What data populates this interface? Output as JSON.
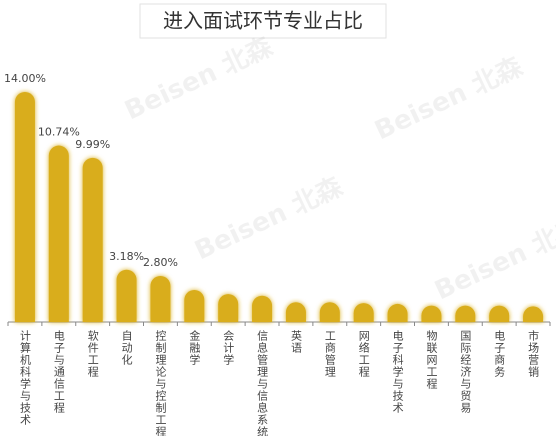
{
  "chart_data": {
    "type": "bar",
    "title": "进入面试环节专业占比",
    "watermark": "Beisen 北森",
    "categories": [
      "计算机科学与技术",
      "电子与通信工程",
      "软件工程",
      "自动化",
      "控制理论与控制工程",
      "金融学",
      "会计学",
      "信息管理与信息系统",
      "英语",
      "工商管理",
      "网络工程",
      "电子科学与技术",
      "物联网工程",
      "国际经济与贸易",
      "电子商务",
      "市场营销"
    ],
    "values": [
      14.0,
      10.74,
      9.99,
      3.18,
      2.8,
      1.95,
      1.7,
      1.6,
      1.2,
      1.2,
      1.15,
      1.1,
      1.0,
      1.0,
      1.0,
      0.95
    ],
    "value_labels": [
      "14.00%",
      "10.74%",
      "9.99%",
      "3.18%",
      "2.80%",
      null,
      null,
      null,
      null,
      null,
      null,
      null,
      null,
      null,
      null,
      null
    ],
    "color": "#d9ad1a"
  }
}
